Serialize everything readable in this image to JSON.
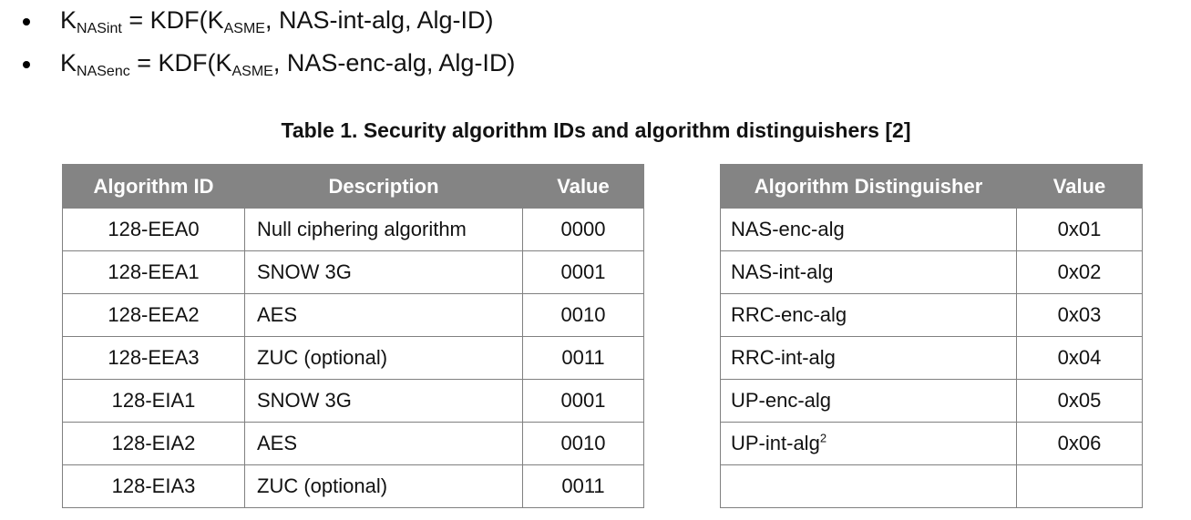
{
  "colors": {
    "header_bg": "#848484",
    "header_text": "#ffffff",
    "border": "#808080",
    "text": "#121212"
  },
  "bullets": [
    {
      "parts": [
        {
          "text": "K"
        },
        {
          "text": "NASint",
          "sub": true
        },
        {
          "text": " = KDF(K"
        },
        {
          "text": "ASME",
          "sub": true
        },
        {
          "text": ", NAS-int-alg, Alg-ID)"
        }
      ]
    },
    {
      "parts": [
        {
          "text": "K"
        },
        {
          "text": "NASenc",
          "sub": true
        },
        {
          "text": " = KDF(K"
        },
        {
          "text": "ASME",
          "sub": true
        },
        {
          "text": ", NAS-enc-alg, Alg-ID)"
        }
      ]
    }
  ],
  "caption": "Table 1. Security algorithm IDs and algorithm distinguishers [2]",
  "tables": [
    {
      "name": "security-algorithm-ids",
      "columns": [
        "Algorithm ID",
        "Description",
        "Value"
      ],
      "rows": [
        [
          "128-EEA0",
          "Null ciphering algorithm",
          "0000"
        ],
        [
          "128-EEA1",
          "SNOW 3G",
          "0001"
        ],
        [
          "128-EEA2",
          "AES",
          "0010"
        ],
        [
          "128-EEA3",
          "ZUC (optional)",
          "0011"
        ],
        [
          "128-EIA1",
          "SNOW 3G",
          "0001"
        ],
        [
          "128-EIA2",
          "AES",
          "0010"
        ],
        [
          "128-EIA3",
          "ZUC (optional)",
          "0011"
        ]
      ]
    },
    {
      "name": "algorithm-distinguishers",
      "columns": [
        "Algorithm Distinguisher",
        "Value"
      ],
      "rows": [
        [
          "NAS-enc-alg",
          "0x01"
        ],
        [
          "NAS-int-alg",
          "0x02"
        ],
        [
          "RRC-enc-alg",
          "0x03"
        ],
        [
          "RRC-int-alg",
          "0x04"
        ],
        [
          "UP-enc-alg",
          "0x05"
        ],
        [
          {
            "text": "UP-int-alg",
            "sup": "2"
          },
          "0x06"
        ],
        [
          "",
          ""
        ]
      ]
    }
  ]
}
